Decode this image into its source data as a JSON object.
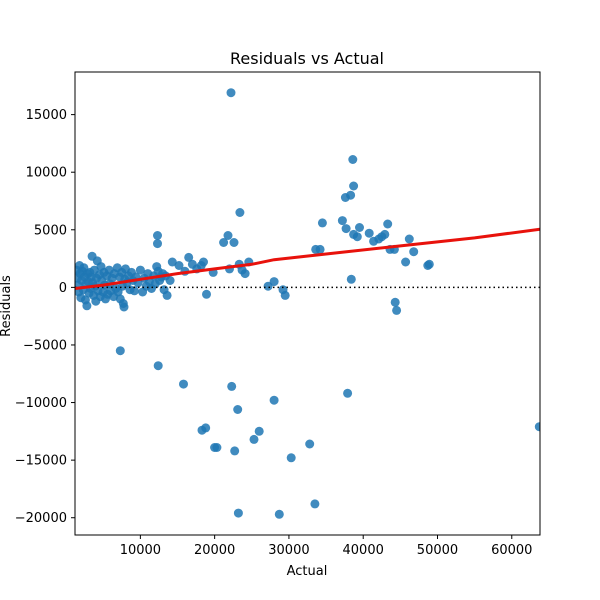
{
  "chart_data": {
    "type": "scatter",
    "title": "Residuals vs Actual",
    "xlabel": "Actual",
    "ylabel": "Residuals",
    "xlim": [
      1200,
      63800
    ],
    "ylim": [
      -21500,
      18700
    ],
    "x_ticks": [
      10000,
      20000,
      30000,
      40000,
      50000,
      60000
    ],
    "x_tick_labels": [
      "10000",
      "20000",
      "30000",
      "40000",
      "50000",
      "60000"
    ],
    "y_ticks": [
      -20000,
      -15000,
      -10000,
      -5000,
      0,
      5000,
      10000,
      15000
    ],
    "y_tick_labels": [
      "−20000",
      "−15000",
      "−10000",
      "−5000",
      "0",
      "5000",
      "10000",
      "15000"
    ],
    "grid": false,
    "zero_line": {
      "y": 0,
      "style": "dotted",
      "color": "#000000"
    },
    "point_color": "#1f77b4",
    "trend_color": "#e8120c",
    "series": [
      {
        "points": [
          [
            1400,
            1500
          ],
          [
            1500,
            800
          ],
          [
            1600,
            200
          ],
          [
            1700,
            -400
          ],
          [
            1800,
            1900
          ],
          [
            1900,
            1200
          ],
          [
            2000,
            -900
          ],
          [
            2100,
            600
          ],
          [
            2200,
            1400
          ],
          [
            2300,
            -200
          ],
          [
            2400,
            1700
          ],
          [
            2500,
            900
          ],
          [
            2600,
            -1100
          ],
          [
            2700,
            300
          ],
          [
            2800,
            -1600
          ],
          [
            2900,
            1200
          ],
          [
            3000,
            500
          ],
          [
            3100,
            -500
          ],
          [
            3200,
            1300
          ],
          [
            3300,
            -100
          ],
          [
            3400,
            900
          ],
          [
            3500,
            2700
          ],
          [
            3600,
            400
          ],
          [
            3700,
            -700
          ],
          [
            3800,
            1500
          ],
          [
            3900,
            100
          ],
          [
            4000,
            -1200
          ],
          [
            4100,
            800
          ],
          [
            4200,
            2300
          ],
          [
            4300,
            -300
          ],
          [
            4500,
            1100
          ],
          [
            4600,
            -800
          ],
          [
            4700,
            1800
          ],
          [
            4800,
            600
          ],
          [
            5000,
            -400
          ],
          [
            5100,
            1300
          ],
          [
            5200,
            200
          ],
          [
            5300,
            -1000
          ],
          [
            5500,
            1000
          ],
          [
            5600,
            -600
          ],
          [
            5800,
            1500
          ],
          [
            5900,
            300
          ],
          [
            6000,
            -300
          ],
          [
            6200,
            800
          ],
          [
            6400,
            -800
          ],
          [
            6500,
            1200
          ],
          [
            6700,
            -100
          ],
          [
            6900,
            1700
          ],
          [
            7000,
            -400
          ],
          [
            7200,
            900
          ],
          [
            7300,
            -1000
          ],
          [
            7500,
            1300
          ],
          [
            7600,
            100
          ],
          [
            7700,
            -1400
          ],
          [
            7800,
            -1700
          ],
          [
            7900,
            700
          ],
          [
            8000,
            1600
          ],
          [
            8200,
            400
          ],
          [
            8400,
            1000
          ],
          [
            8600,
            -200
          ],
          [
            8800,
            1300
          ],
          [
            9000,
            600
          ],
          [
            9200,
            -300
          ],
          [
            9400,
            900
          ],
          [
            9700,
            400
          ],
          [
            10000,
            1500
          ],
          [
            10300,
            -400
          ],
          [
            10500,
            800
          ],
          [
            10800,
            100
          ],
          [
            11000,
            1200
          ],
          [
            11200,
            500
          ],
          [
            11500,
            -100
          ],
          [
            11800,
            1000
          ],
          [
            12000,
            300
          ],
          [
            12200,
            1800
          ],
          [
            12400,
            1400
          ],
          [
            12600,
            600
          ],
          [
            12800,
            900
          ],
          [
            13000,
            1200
          ],
          [
            13200,
            -200
          ],
          [
            13400,
            1000
          ],
          [
            13600,
            -700
          ],
          [
            14000,
            600
          ],
          [
            14300,
            2200
          ],
          [
            15200,
            1900
          ],
          [
            16000,
            1400
          ],
          [
            16500,
            2600
          ],
          [
            17000,
            2000
          ],
          [
            17600,
            1600
          ],
          [
            18200,
            1900
          ],
          [
            18500,
            2200
          ],
          [
            18900,
            -600
          ],
          [
            19800,
            1300
          ],
          [
            7300,
            -5500
          ],
          [
            12300,
            4500
          ],
          [
            12300,
            3800
          ],
          [
            12400,
            -6800
          ],
          [
            15800,
            -8400
          ],
          [
            18300,
            -12400
          ],
          [
            18800,
            -12200
          ],
          [
            20000,
            -13900
          ],
          [
            20300,
            -13900
          ],
          [
            21200,
            3900
          ],
          [
            21800,
            4500
          ],
          [
            22000,
            1600
          ],
          [
            22200,
            16900
          ],
          [
            22300,
            -8600
          ],
          [
            22600,
            3900
          ],
          [
            22700,
            -14200
          ],
          [
            23100,
            -10600
          ],
          [
            23200,
            -19600
          ],
          [
            23300,
            2000
          ],
          [
            23400,
            6500
          ],
          [
            23700,
            1500
          ],
          [
            24100,
            1200
          ],
          [
            24600,
            2200
          ],
          [
            25300,
            -13200
          ],
          [
            26000,
            -12500
          ],
          [
            27200,
            100
          ],
          [
            28000,
            -9800
          ],
          [
            28000,
            500
          ],
          [
            28700,
            -19700
          ],
          [
            29200,
            -200
          ],
          [
            29500,
            -700
          ],
          [
            30300,
            -14800
          ],
          [
            32800,
            -13600
          ],
          [
            33500,
            -18800
          ],
          [
            33600,
            3300
          ],
          [
            34200,
            3300
          ],
          [
            34500,
            5600
          ],
          [
            37200,
            5800
          ],
          [
            37600,
            7800
          ],
          [
            37700,
            5100
          ],
          [
            37900,
            -9200
          ],
          [
            38300,
            8000
          ],
          [
            38400,
            700
          ],
          [
            38600,
            11100
          ],
          [
            38700,
            8800
          ],
          [
            38700,
            4600
          ],
          [
            39200,
            4400
          ],
          [
            39500,
            5200
          ],
          [
            40800,
            4700
          ],
          [
            41400,
            4000
          ],
          [
            42100,
            4200
          ],
          [
            42500,
            4400
          ],
          [
            42900,
            4600
          ],
          [
            43300,
            5500
          ],
          [
            43600,
            3300
          ],
          [
            44200,
            3300
          ],
          [
            44300,
            -1300
          ],
          [
            44500,
            -2000
          ],
          [
            45700,
            2200
          ],
          [
            46200,
            4200
          ],
          [
            46800,
            3100
          ],
          [
            48700,
            1900
          ],
          [
            48900,
            2000
          ],
          [
            63700,
            -12100
          ]
        ]
      }
    ],
    "trend_line": [
      [
        1200,
        -100
      ],
      [
        5000,
        200
      ],
      [
        10000,
        700
      ],
      [
        15000,
        1200
      ],
      [
        20000,
        1600
      ],
      [
        25000,
        2000
      ],
      [
        28000,
        2400
      ],
      [
        35000,
        2900
      ],
      [
        45000,
        3600
      ],
      [
        55000,
        4300
      ],
      [
        63800,
        5050
      ]
    ]
  }
}
